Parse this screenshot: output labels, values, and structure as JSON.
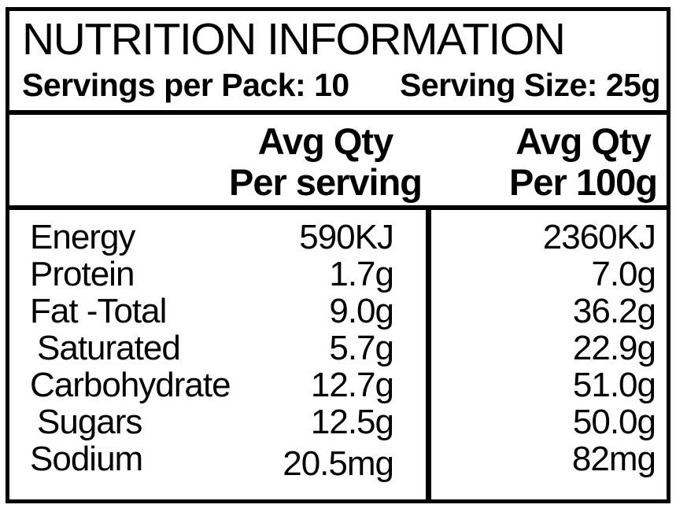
{
  "label": {
    "title": "NUTRITION INFORMATION",
    "servings_per_pack": "Servings per Pack: 10",
    "serving_size": "Serving Size: 25g",
    "columns": {
      "per_serving": {
        "line1": "Avg Qty",
        "line2": "Per serving"
      },
      "per_100g": {
        "line1": "Avg Qty",
        "line2": "Per 100g"
      }
    },
    "rows": [
      {
        "nutrient": "Energy",
        "per_serving": "590KJ",
        "per_100g": "2360KJ",
        "indent": false,
        "value_offset": false
      },
      {
        "nutrient": "Protein",
        "per_serving": "1.7g",
        "per_100g": "7.0g",
        "indent": false,
        "value_offset": false
      },
      {
        "nutrient": "Fat -Total",
        "per_serving": "9.0g",
        "per_100g": "36.2g",
        "indent": false,
        "value_offset": false
      },
      {
        "nutrient": "Saturated",
        "per_serving": "5.7g",
        "per_100g": "22.9g",
        "indent": true,
        "value_offset": false
      },
      {
        "nutrient": "Carbohydrate",
        "per_serving": "12.7g",
        "per_100g": "51.0g",
        "indent": false,
        "value_offset": false
      },
      {
        "nutrient": "Sugars",
        "per_serving": "12.5g",
        "per_100g": "50.0g",
        "indent": true,
        "value_offset": false
      },
      {
        "nutrient": "Sodium",
        "per_serving": "20.5mg",
        "per_100g": "82mg",
        "indent": false,
        "value_offset": true
      }
    ],
    "colors": {
      "ink": "#000000",
      "background": "#ffffff"
    }
  }
}
